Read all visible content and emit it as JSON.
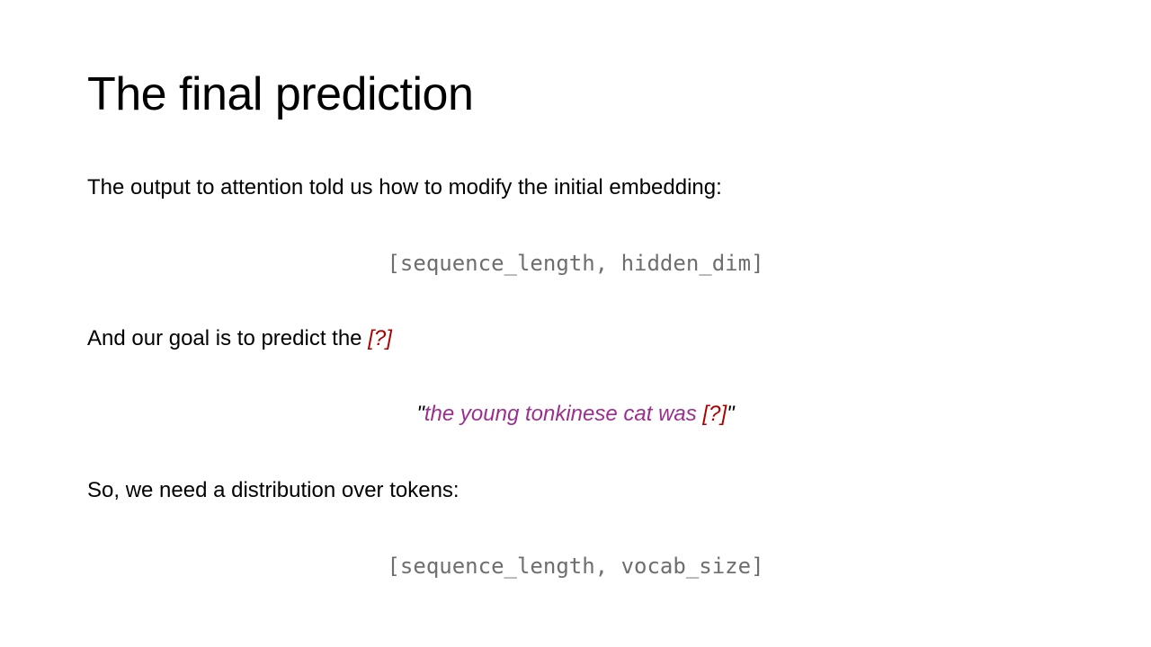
{
  "slide": {
    "title": "The final prediction",
    "paragraph1": "The output to attention told us how to modify the initial embedding:",
    "shape1": "[sequence_length, hidden_dim]",
    "paragraph2_text": "And our goal is to predict the ",
    "paragraph2_mark": "[?]",
    "quote_open": "\"",
    "quote_sentence": "the young tonkinese cat was ",
    "quote_mark": "[?]",
    "quote_close": "\"",
    "paragraph3": "So, we need a distribution over tokens:",
    "shape2": "[sequence_length, vocab_size]"
  },
  "colors": {
    "mark": "#b00000",
    "sentence": "#9b2e8e",
    "code": "#6e6e6e"
  }
}
